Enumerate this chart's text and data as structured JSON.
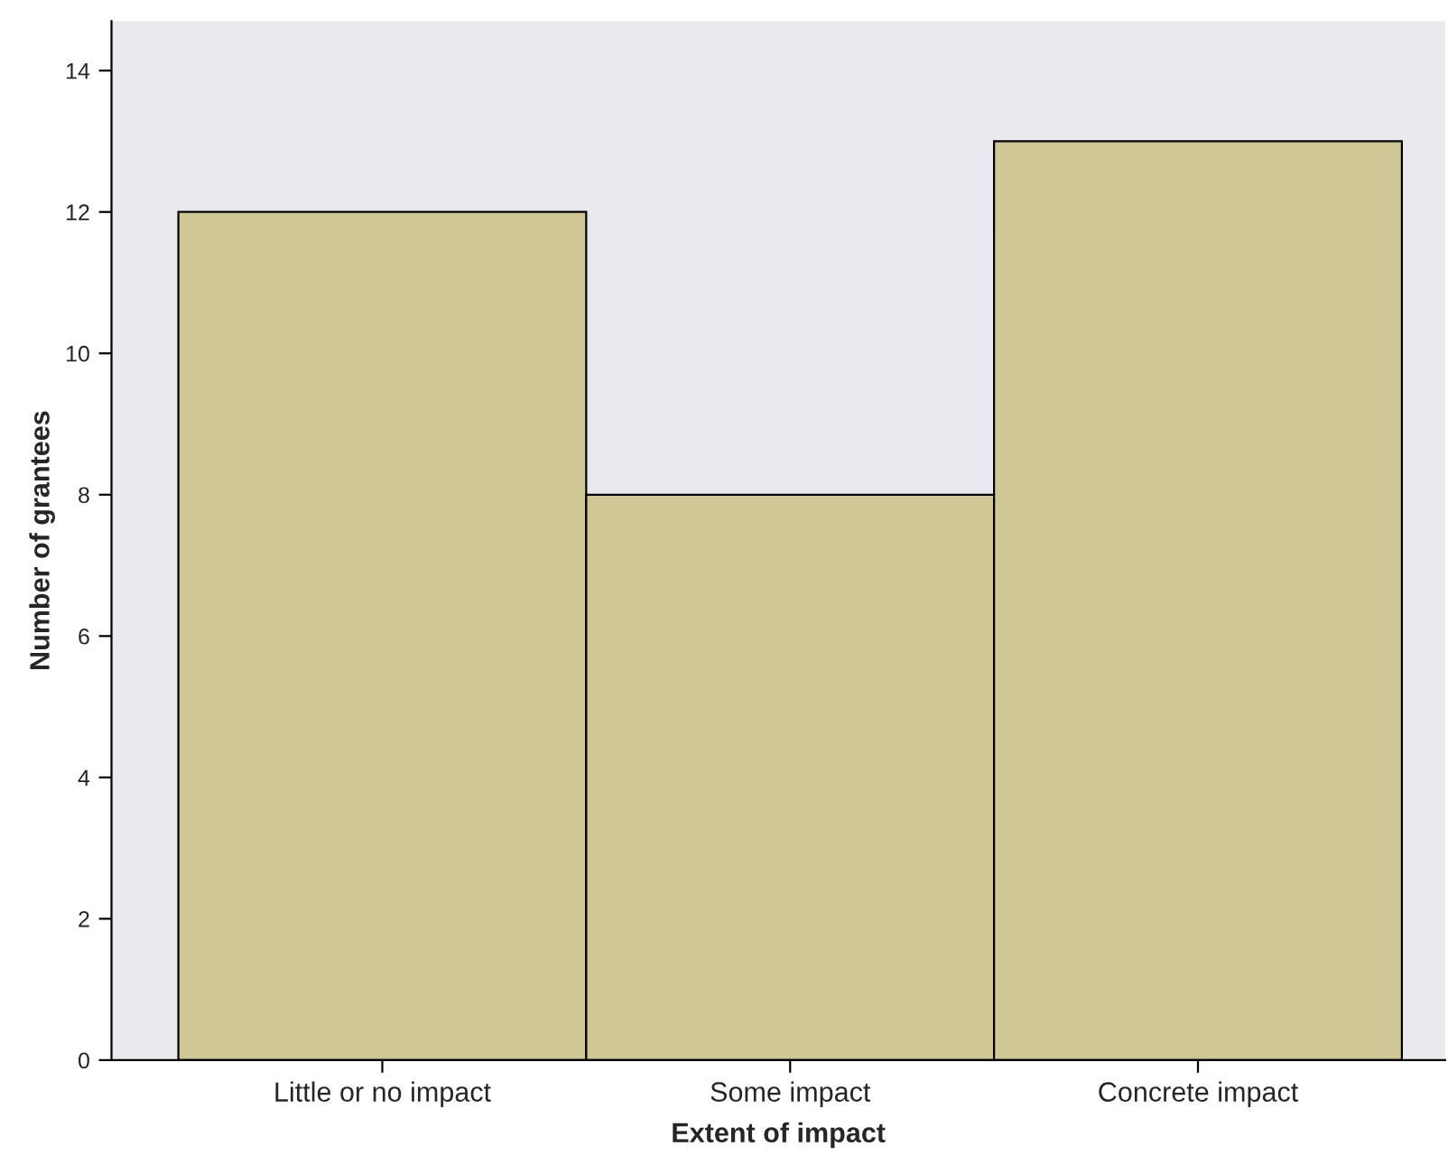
{
  "chart_data": {
    "type": "bar",
    "xlabel": "Extent of impact",
    "ylabel": "Number of grantees",
    "categories": [
      "Little or no impact",
      "Some impact",
      "Concrete impact"
    ],
    "values": [
      12,
      8,
      13
    ],
    "color": "#cfc795",
    "ylim": [
      0,
      14.7
    ],
    "yticks": [
      0,
      2,
      4,
      6,
      8,
      10,
      12,
      14
    ],
    "grid": false
  }
}
